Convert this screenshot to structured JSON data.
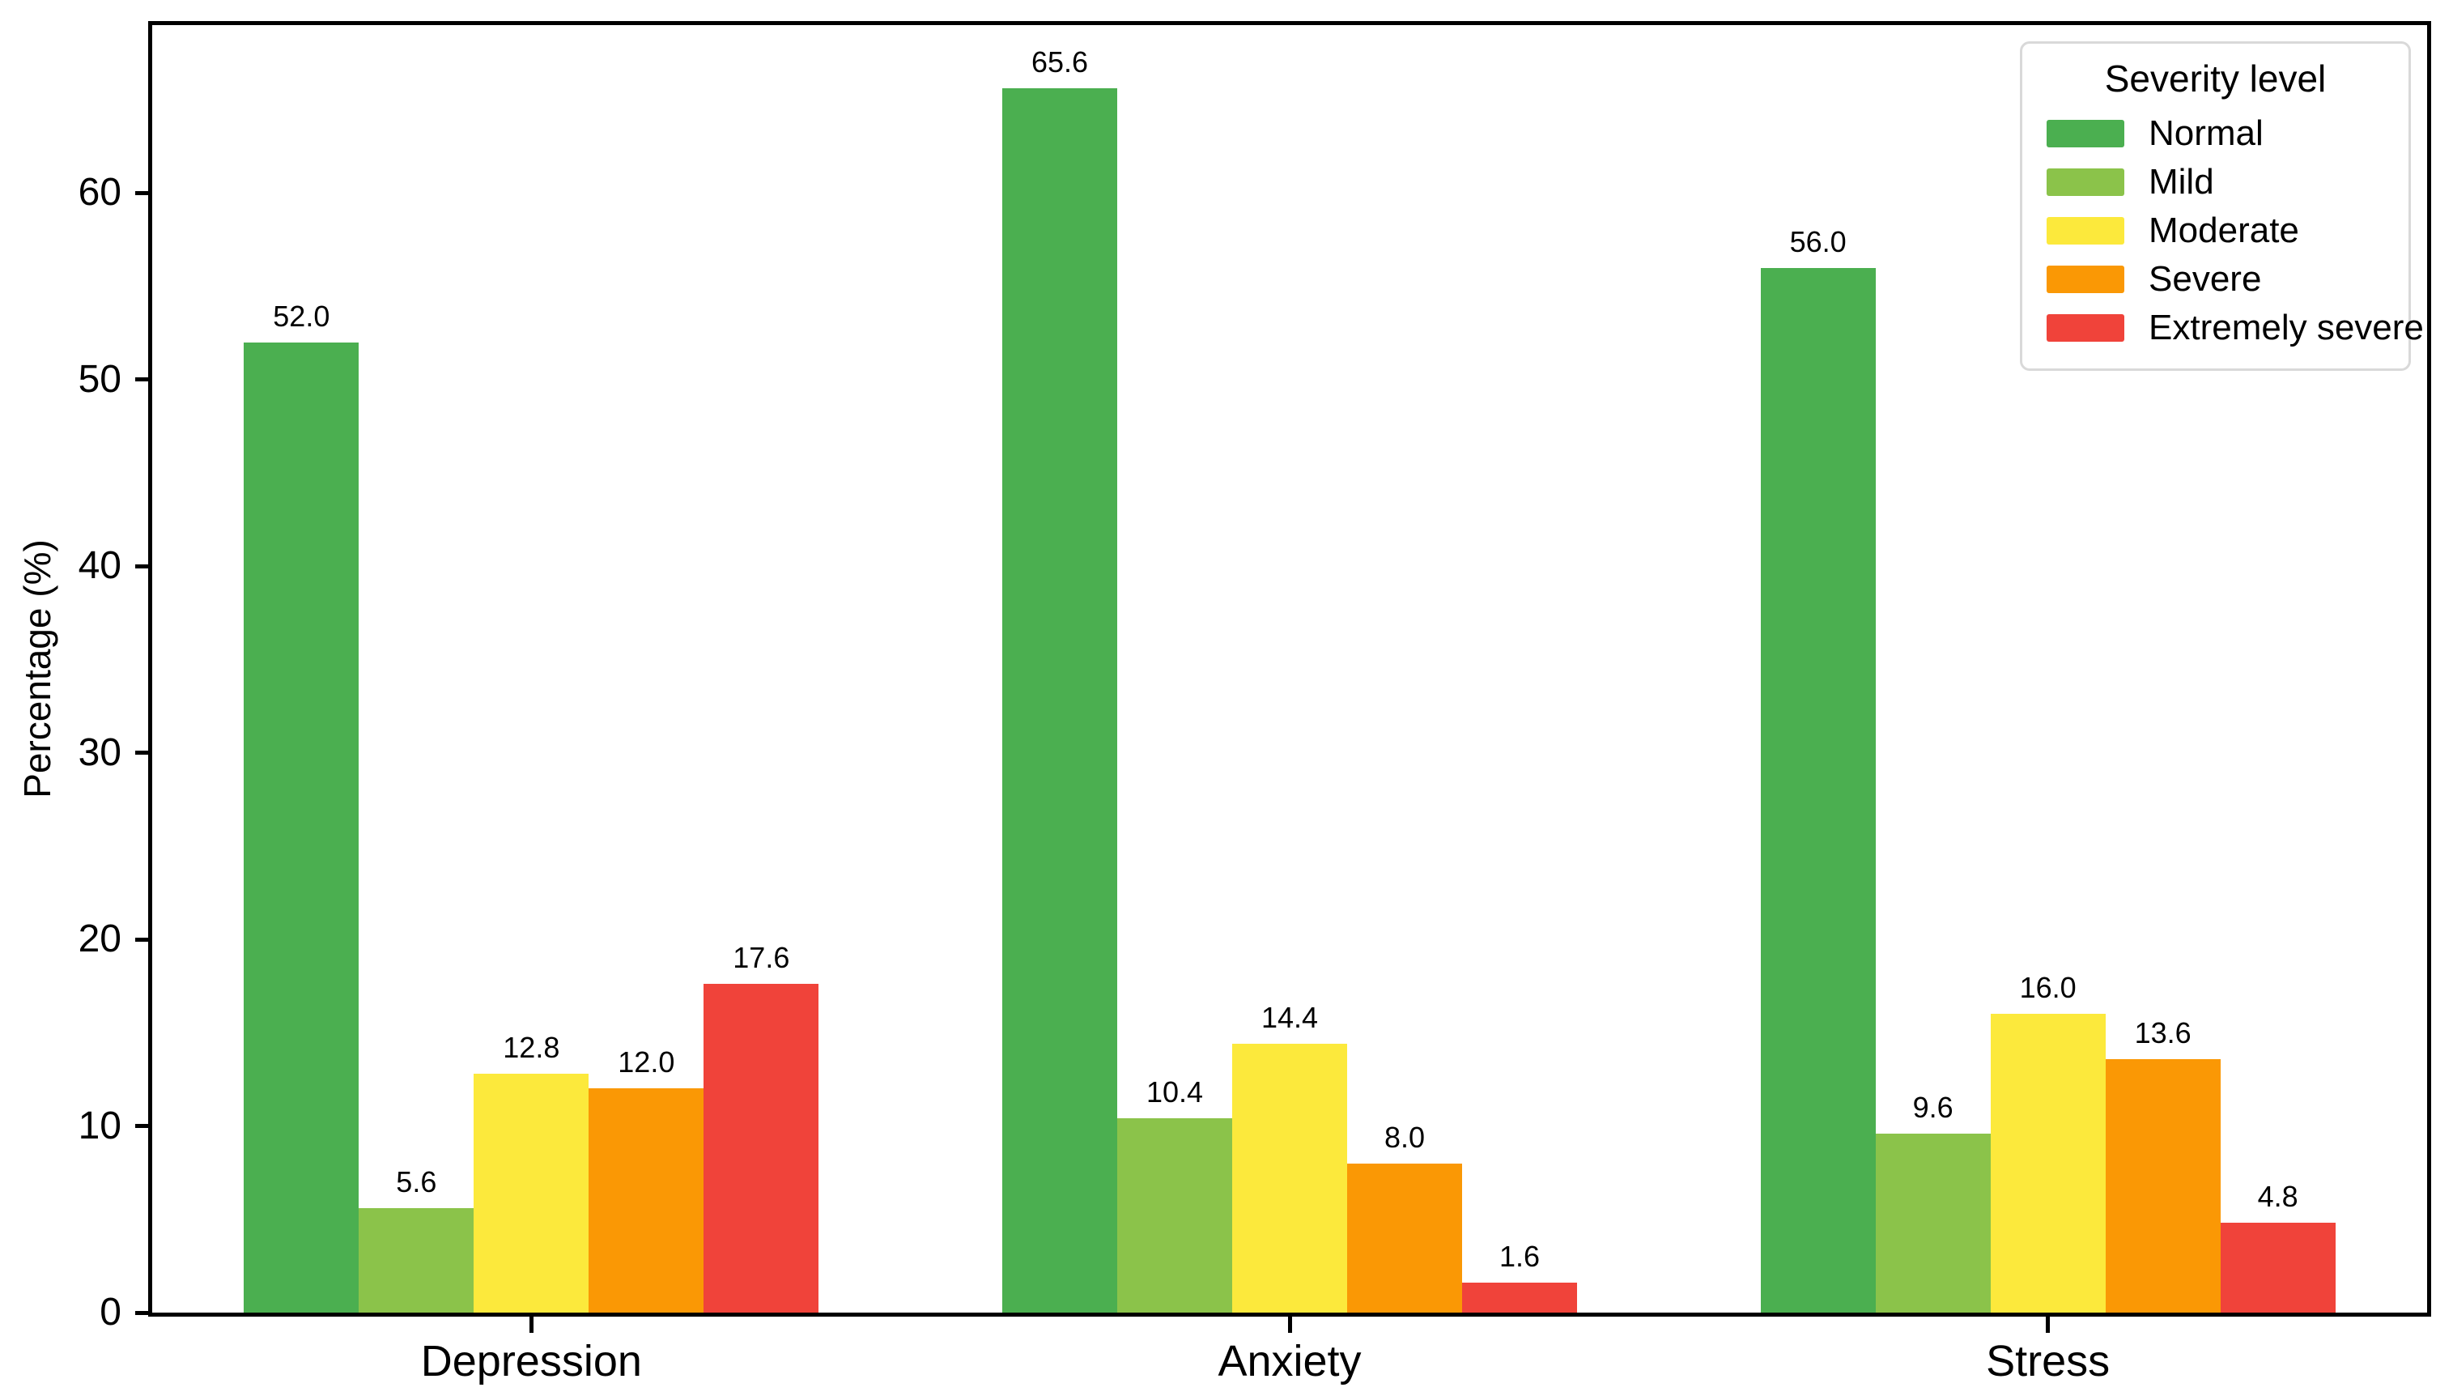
{
  "chart_data": {
    "type": "bar",
    "categories": [
      "Depression",
      "Anxiety",
      "Stress"
    ],
    "series": [
      {
        "name": "Normal",
        "color": "#4BAF50",
        "values": [
          52.0,
          65.6,
          56.0
        ]
      },
      {
        "name": "Mild",
        "color": "#8BC34A",
        "values": [
          5.6,
          10.4,
          9.6
        ]
      },
      {
        "name": "Moderate",
        "color": "#FCE93C",
        "values": [
          12.8,
          14.4,
          16.0
        ]
      },
      {
        "name": "Severe",
        "color": "#FA9805",
        "values": [
          12.0,
          8.0,
          13.6
        ]
      },
      {
        "name": "Extremely severe",
        "color": "#F0433A",
        "values": [
          17.6,
          1.6,
          4.8
        ]
      }
    ],
    "title": "",
    "xlabel": "",
    "ylabel": "Percentage (%)",
    "yticks": [
      0,
      10,
      20,
      30,
      40,
      50,
      60
    ],
    "ylim": [
      0,
      69
    ],
    "bar_label_decimals": 1,
    "grid": false,
    "legend": {
      "title": "Severity level",
      "position": "top-right"
    },
    "colors": {
      "axis": "#000000",
      "background": "#ffffff",
      "legend_border": "#d9d9d9"
    }
  }
}
